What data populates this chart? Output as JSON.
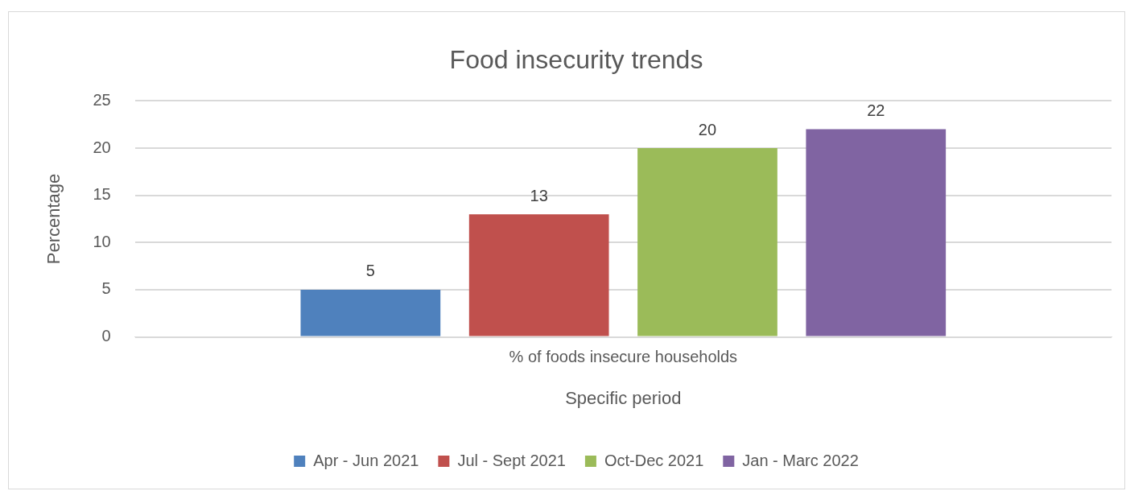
{
  "chart_data": {
    "type": "bar",
    "title": "Food insecurity trends",
    "xlabel": "Specific period",
    "ylabel": "Percentage",
    "categories": [
      "% of foods insecure households"
    ],
    "series": [
      {
        "name": "Apr - Jun 2021",
        "color": "#4f81bd",
        "values": [
          5
        ]
      },
      {
        "name": "Jul - Sept 2021",
        "color": "#c0504d",
        "values": [
          13
        ]
      },
      {
        "name": "Oct-Dec 2021",
        "color": "#9bbb59",
        "values": [
          20
        ]
      },
      {
        "name": "Jan - Marc 2022",
        "color": "#8064a2",
        "values": [
          22
        ]
      }
    ],
    "ylim": [
      0,
      25
    ],
    "yticks": [
      0,
      5,
      10,
      15,
      20,
      25
    ],
    "grid": "y",
    "legend": "bottom",
    "data_labels": true
  }
}
